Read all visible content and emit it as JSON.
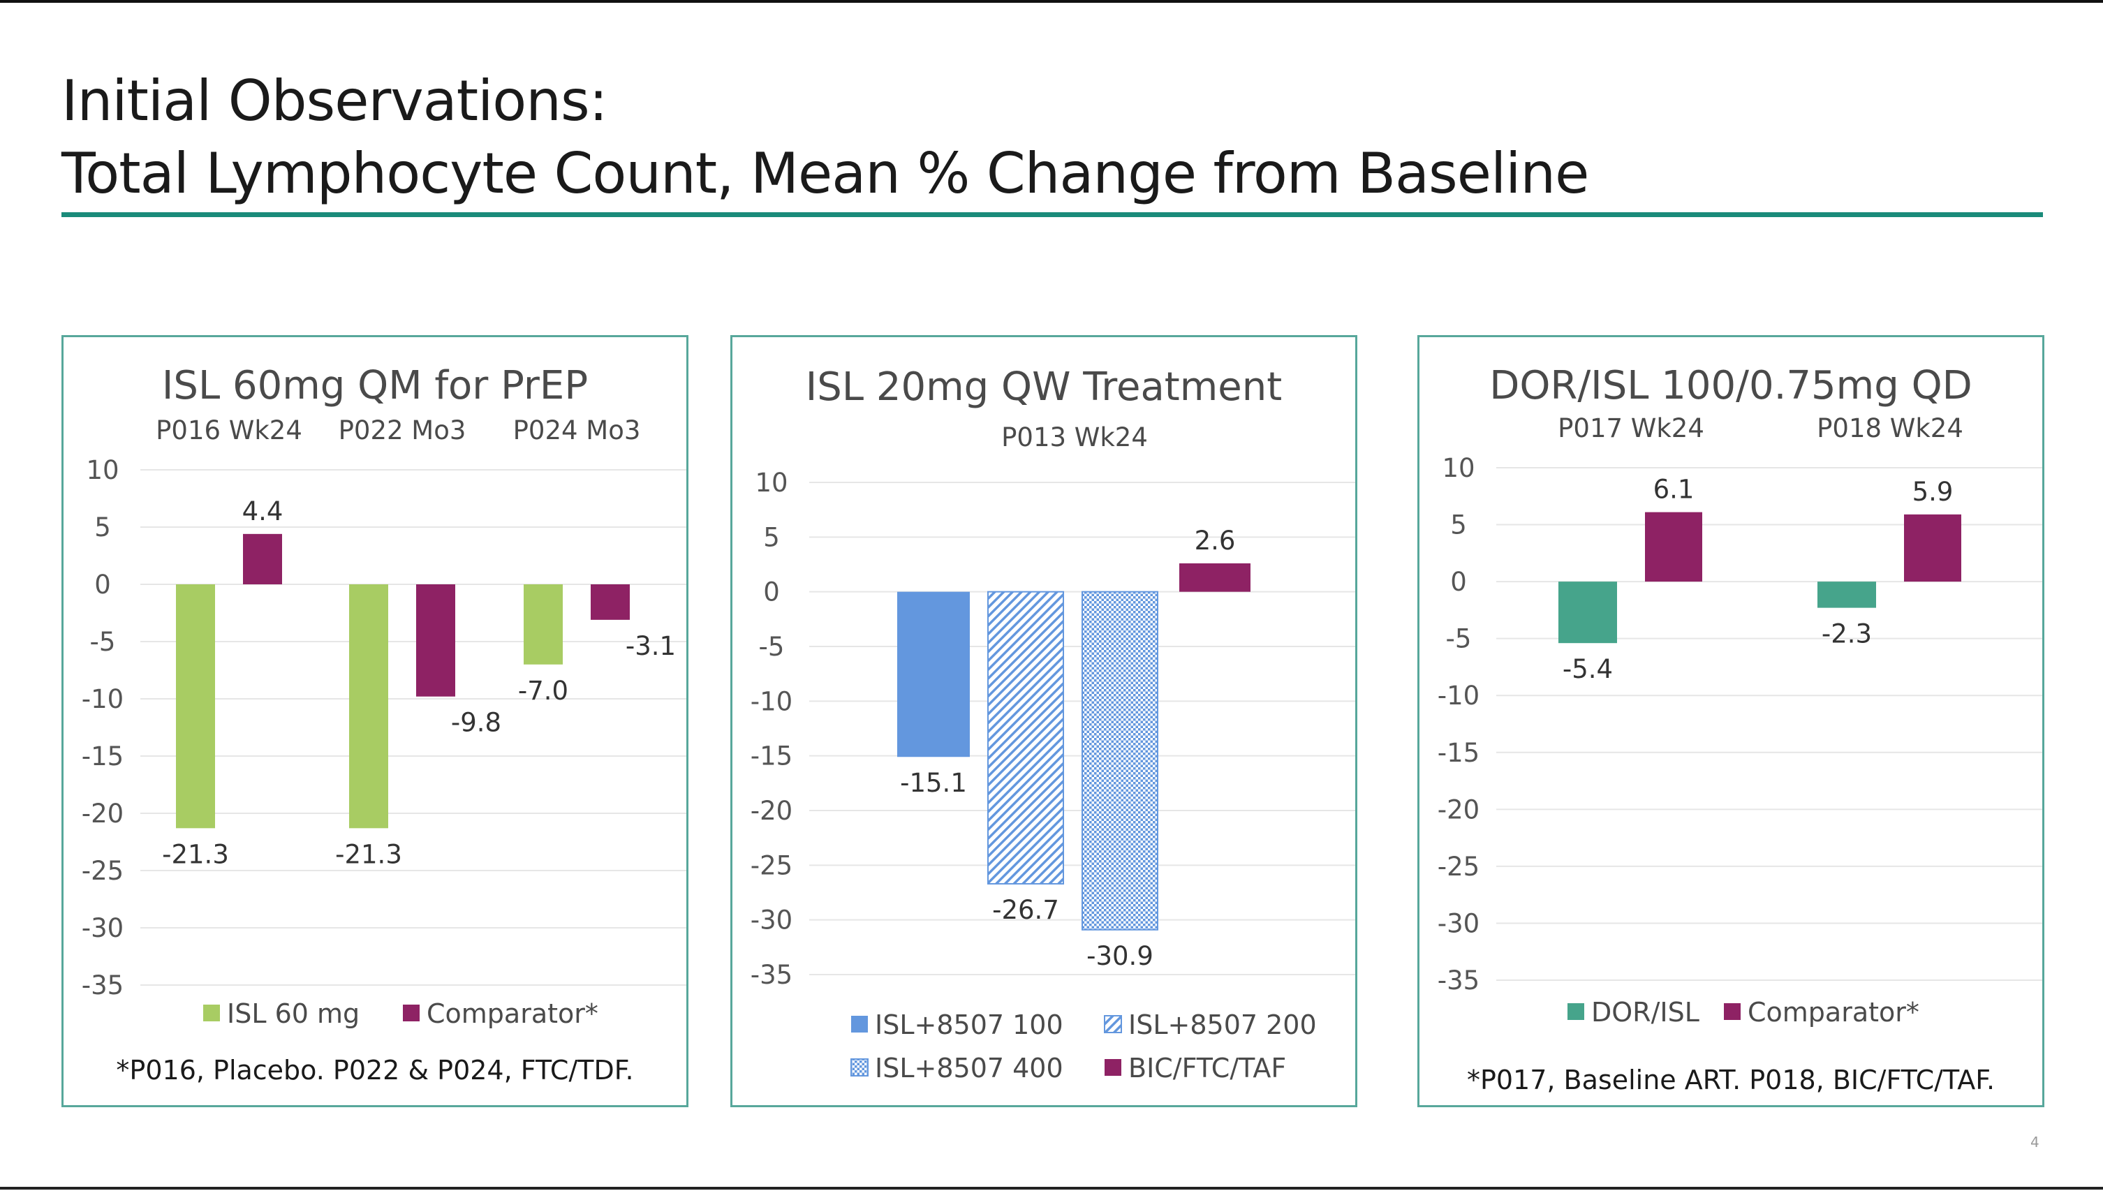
{
  "slide": {
    "title_line1": "Initial Observations:",
    "title_line2": "Total Lymphocyte Count, Mean % Change from Baseline",
    "page_number": "4"
  },
  "colors": {
    "accent_teal": "#1a8b7a",
    "panel_border": "#57a79b",
    "isl_green": "#a8cc63",
    "comparator_magenta": "#8e2264",
    "blue": "#6397de",
    "dor_isl_teal": "#46a48b"
  },
  "chart_data": [
    {
      "type": "bar",
      "title": "ISL 60mg QM for PrEP",
      "categories": [
        "P016 Wk24",
        "P022 Mo3",
        "P024 Mo3"
      ],
      "series": [
        {
          "name": "ISL 60 mg",
          "values": [
            -21.3,
            -21.3,
            -7.0
          ],
          "labels": [
            "-21.3",
            "-21.3",
            "-7.0"
          ],
          "color": "#a8cc63",
          "pattern": "solid"
        },
        {
          "name": "Comparator*",
          "values": [
            4.4,
            -9.8,
            -3.1
          ],
          "labels": [
            "4.4",
            "-9.8",
            "-3.1"
          ],
          "color": "#8e2264",
          "pattern": "solid"
        }
      ],
      "yticks": [
        "10",
        "5",
        "0",
        "-5",
        "-10",
        "-15",
        "-20",
        "-25",
        "-30",
        "-35"
      ],
      "ylim": [
        -35,
        10
      ],
      "grid": true,
      "legend_position": "bottom",
      "footnote": "*P016, Placebo.  P022 & P024, FTC/TDF."
    },
    {
      "type": "bar",
      "title": "ISL 20mg QW Treatment",
      "categories": [
        "P013 Wk24"
      ],
      "series": [
        {
          "name": "ISL+8507 100",
          "values": [
            -15.1
          ],
          "labels": [
            "-15.1"
          ],
          "color": "#6397de",
          "pattern": "solid"
        },
        {
          "name": "ISL+8507 200",
          "values": [
            -26.7
          ],
          "labels": [
            "-26.7"
          ],
          "color": "#6397de",
          "pattern": "diagonal"
        },
        {
          "name": "ISL+8507 400",
          "values": [
            -30.9
          ],
          "labels": [
            "-30.9"
          ],
          "color": "#6397de",
          "pattern": "dots"
        },
        {
          "name": "BIC/FTC/TAF",
          "values": [
            2.6
          ],
          "labels": [
            "2.6"
          ],
          "color": "#8e2264",
          "pattern": "solid"
        }
      ],
      "yticks": [
        "10",
        "5",
        "0",
        "-5",
        "-10",
        "-15",
        "-20",
        "-25",
        "-30",
        "-35"
      ],
      "ylim": [
        -35,
        10
      ],
      "grid": true,
      "legend_position": "bottom"
    },
    {
      "type": "bar",
      "title": "DOR/ISL 100/0.75mg QD",
      "categories": [
        "P017 Wk24",
        "P018 Wk24"
      ],
      "series": [
        {
          "name": "DOR/ISL",
          "values": [
            -5.4,
            -2.3
          ],
          "labels": [
            "-5.4",
            "-2.3"
          ],
          "color": "#46a48b",
          "pattern": "solid"
        },
        {
          "name": "Comparator*",
          "values": [
            6.1,
            5.9
          ],
          "labels": [
            "6.1",
            "5.9"
          ],
          "color": "#8e2264",
          "pattern": "solid"
        }
      ],
      "yticks": [
        "10",
        "5",
        "0",
        "-5",
        "-10",
        "-15",
        "-20",
        "-25",
        "-30",
        "-35"
      ],
      "ylim": [
        -35,
        10
      ],
      "grid": true,
      "legend_position": "bottom",
      "footnote": "*P017, Baseline ART.  P018, BIC/FTC/TAF."
    }
  ]
}
